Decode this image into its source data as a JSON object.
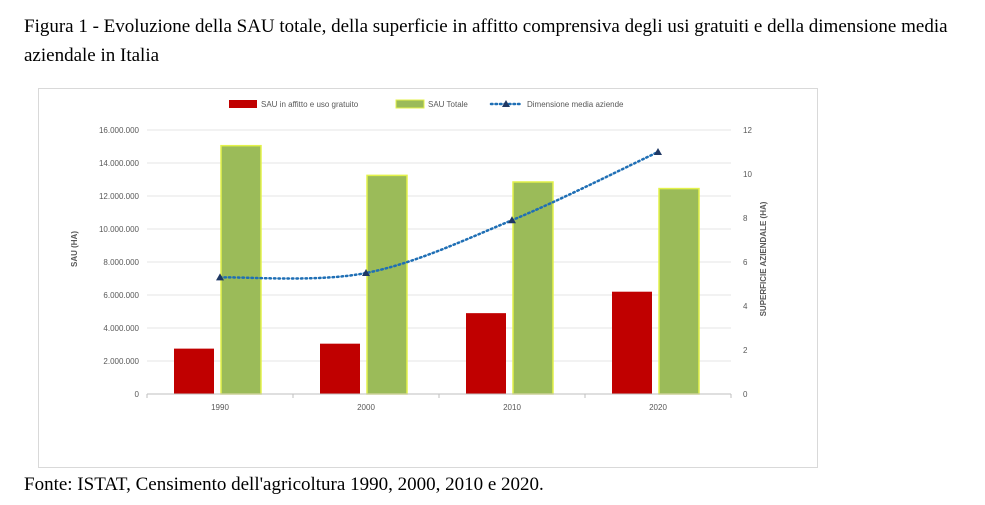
{
  "figure": {
    "title": "Figura 1 - Evoluzione della SAU totale, della superficie in affitto comprensiva degli usi gratuiti e della dimensione media aziendale in Italia",
    "source": "Fonte: ISTAT, Censimento dell'agricoltura 1990, 2000, 2010 e 2020."
  },
  "colors": {
    "affitto": "#c00000",
    "totale": "#9bbb59",
    "totale_border": "#e3f24a",
    "media": "#1f6fb5",
    "marker": "#1f3864",
    "grid": "#e6e6e6",
    "axis_text": "#595959"
  },
  "chart_data": {
    "type": "bar",
    "categories": [
      "1990",
      "2000",
      "2010",
      "2020"
    ],
    "series": [
      {
        "name": "SAU in affitto e uso gratuito",
        "values": [
          2750000,
          3050000,
          4900000,
          6200000
        ],
        "kind": "bar",
        "axis": "left"
      },
      {
        "name": "SAU Totale",
        "values": [
          15050000,
          13250000,
          12850000,
          12450000
        ],
        "kind": "bar",
        "axis": "left"
      },
      {
        "name": "Dimensione media aziende",
        "values": [
          5.3,
          5.5,
          7.9,
          11.0
        ],
        "kind": "line-dotted",
        "axis": "right"
      }
    ],
    "ylabel": "SAU (HA)",
    "y2label": "SUPERFICIE AZIENDALE (HA)",
    "ylim": [
      0,
      16000000
    ],
    "y2lim": [
      0,
      12
    ],
    "yticks": [
      "0",
      "2.000.000",
      "4.000.000",
      "6.000.000",
      "8.000.000",
      "10.000.000",
      "12.000.000",
      "14.000.000",
      "16.000.000"
    ],
    "y2ticks": [
      "0",
      "2",
      "4",
      "6",
      "8",
      "10",
      "12"
    ],
    "grid": true,
    "legend_position": "top"
  }
}
